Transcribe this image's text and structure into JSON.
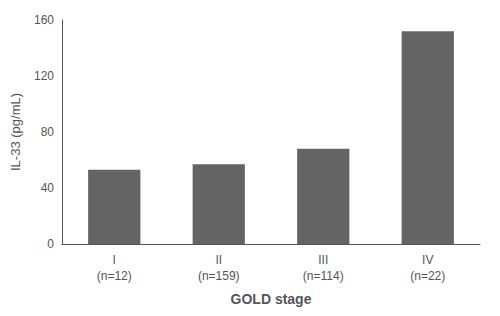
{
  "chart_data": {
    "type": "bar",
    "categories": [
      "I\n(n=12)",
      "II\n(n=159)",
      "III\n(n=114)",
      "IV\n(n=22)"
    ],
    "values": [
      53,
      57,
      68,
      152
    ],
    "color": "#646464",
    "xlabel": "GOLD stage",
    "ylabel": "IL-33 (pg/mL)",
    "ylim": [
      0,
      160
    ],
    "yticks": [
      0,
      40,
      80,
      120,
      160
    ],
    "grid": false
  }
}
